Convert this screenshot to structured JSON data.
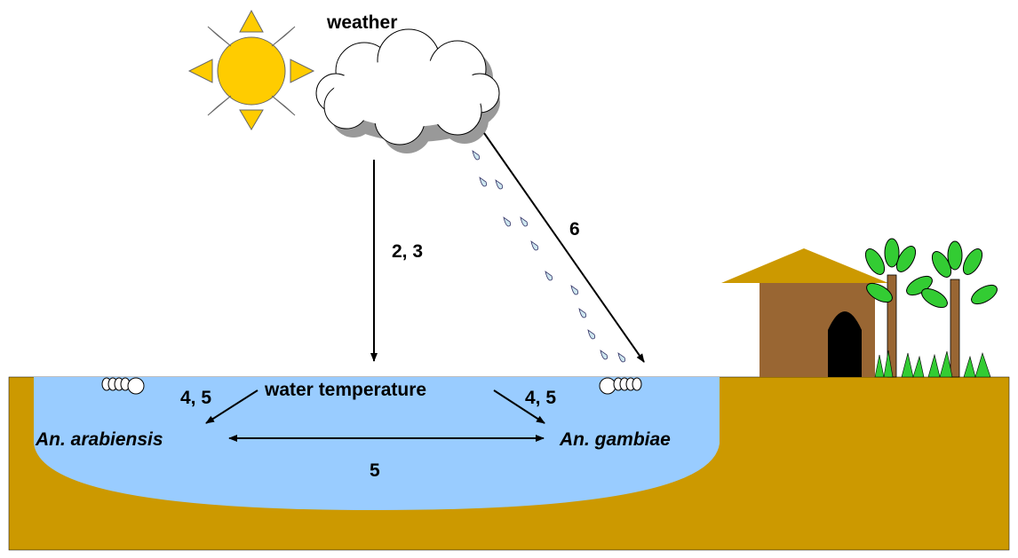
{
  "weather": "weather",
  "arrows": {
    "weather_to_water": "2, 3",
    "rain_to_gambiae": "6",
    "water_to_arabiensis": "4, 5",
    "water_to_gambiae": "4, 5",
    "between_species": "5"
  },
  "nodes": {
    "water": "water temperature",
    "arabiensis": "An. arabiensis",
    "gambiae": "An. gambiae"
  }
}
